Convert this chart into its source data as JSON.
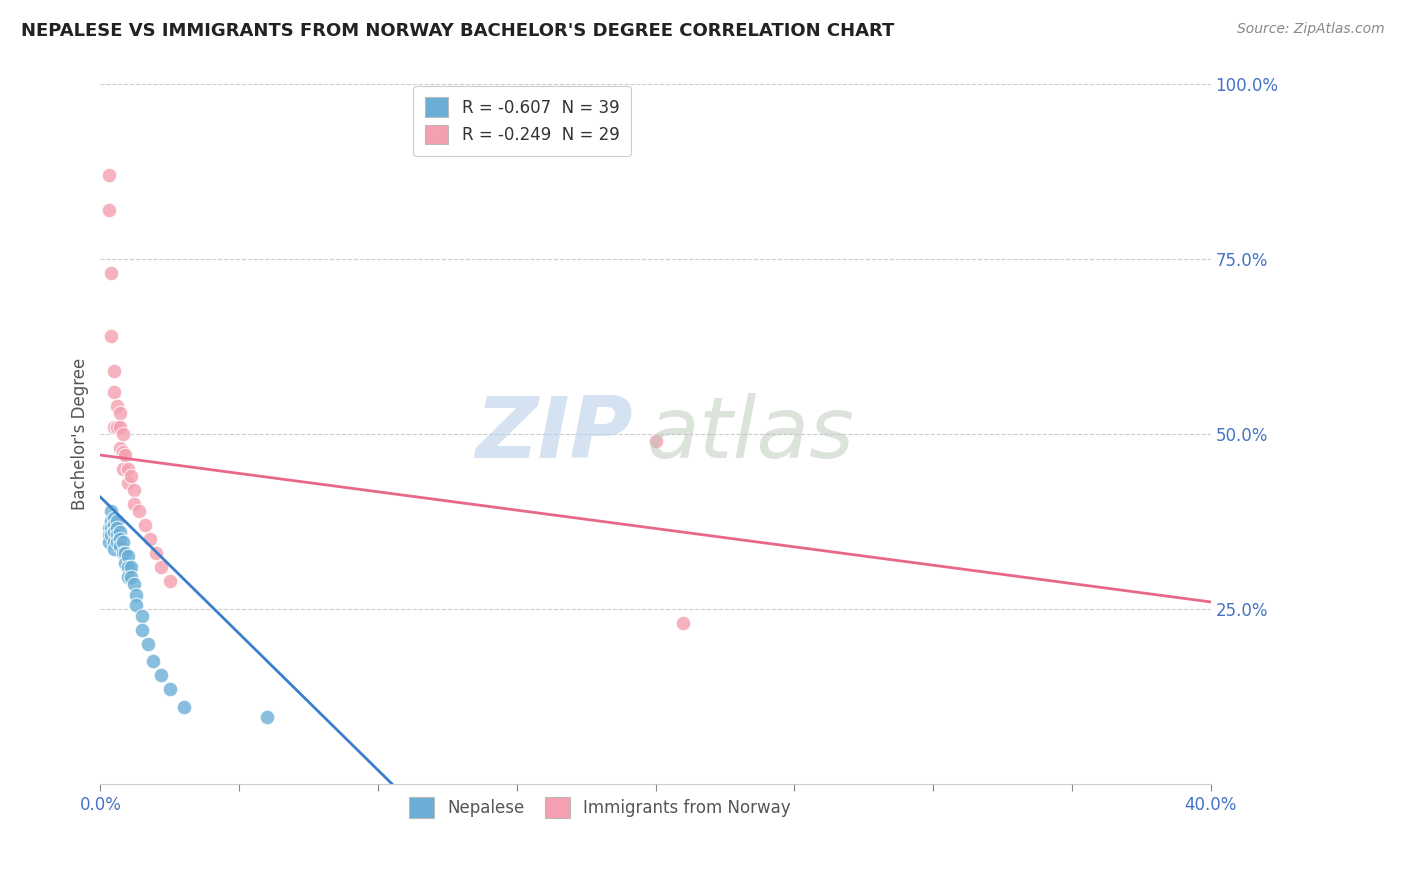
{
  "title": "NEPALESE VS IMMIGRANTS FROM NORWAY BACHELOR'S DEGREE CORRELATION CHART",
  "source": "Source: ZipAtlas.com",
  "ylabel": "Bachelor's Degree",
  "xlim": [
    0.0,
    0.4
  ],
  "ylim": [
    0.0,
    1.0
  ],
  "yticks": [
    0.25,
    0.5,
    0.75,
    1.0
  ],
  "ytick_labels": [
    "25.0%",
    "50.0%",
    "75.0%",
    "100.0%"
  ],
  "legend_r1": "R = -0.607  N = 39",
  "legend_r2": "R = -0.249  N = 29",
  "nepalese_color": "#6aaed6",
  "norway_color": "#f4a0b0",
  "trendline_blue": "#3a7fcc",
  "trendline_pink": "#e8688a",
  "nepalese_x": [
    0.003,
    0.003,
    0.003,
    0.004,
    0.004,
    0.004,
    0.004,
    0.005,
    0.005,
    0.005,
    0.005,
    0.005,
    0.006,
    0.006,
    0.006,
    0.006,
    0.007,
    0.007,
    0.007,
    0.008,
    0.008,
    0.009,
    0.009,
    0.01,
    0.01,
    0.01,
    0.011,
    0.011,
    0.012,
    0.013,
    0.013,
    0.015,
    0.015,
    0.017,
    0.019,
    0.022,
    0.025,
    0.03,
    0.06
  ],
  "nepalese_y": [
    0.365,
    0.355,
    0.345,
    0.39,
    0.375,
    0.365,
    0.355,
    0.38,
    0.37,
    0.36,
    0.345,
    0.335,
    0.375,
    0.365,
    0.355,
    0.345,
    0.36,
    0.35,
    0.34,
    0.345,
    0.33,
    0.33,
    0.315,
    0.325,
    0.31,
    0.295,
    0.31,
    0.295,
    0.285,
    0.27,
    0.255,
    0.24,
    0.22,
    0.2,
    0.175,
    0.155,
    0.135,
    0.11,
    0.095
  ],
  "norway_x": [
    0.003,
    0.003,
    0.004,
    0.004,
    0.005,
    0.005,
    0.005,
    0.006,
    0.006,
    0.007,
    0.007,
    0.007,
    0.008,
    0.008,
    0.008,
    0.009,
    0.01,
    0.01,
    0.011,
    0.012,
    0.012,
    0.014,
    0.016,
    0.018,
    0.02,
    0.022,
    0.025,
    0.2,
    0.21
  ],
  "norway_y": [
    0.87,
    0.82,
    0.73,
    0.64,
    0.59,
    0.56,
    0.51,
    0.54,
    0.51,
    0.53,
    0.51,
    0.48,
    0.5,
    0.475,
    0.45,
    0.47,
    0.45,
    0.43,
    0.44,
    0.42,
    0.4,
    0.39,
    0.37,
    0.35,
    0.33,
    0.31,
    0.29,
    0.49,
    0.23
  ],
  "blue_trend_x": [
    0.0,
    0.105
  ],
  "blue_trend_y": [
    0.41,
    0.0
  ],
  "pink_trend_x": [
    0.0,
    0.4
  ],
  "pink_trend_y": [
    0.47,
    0.26
  ]
}
